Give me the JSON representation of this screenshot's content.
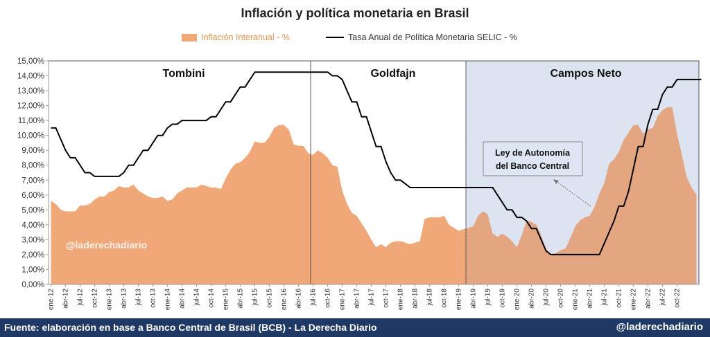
{
  "title": "Inflación y política monetaria en Brasil",
  "legend": {
    "inflation": "Inflación Interanual - %",
    "selic": "Tasa Anual de Política Monetaria SELIC - %"
  },
  "periods": [
    {
      "name": "Tombini",
      "start": 0,
      "end": 54
    },
    {
      "name": "Goldfajn",
      "start": 54,
      "end": 86
    },
    {
      "name": "Campos Neto",
      "start": 86,
      "end": 131
    }
  ],
  "annotation": {
    "text_line1": "Ley de Autonomía",
    "text_line2": "del Banco Central",
    "points_to": "feb-21"
  },
  "watermark": "@laderechadiario",
  "footer": {
    "source": "Fuente: elaboración en base a Banco Central de Brasil (BCB) - La Derecha Diario",
    "handle": "@laderechadiario"
  },
  "colors": {
    "inflation_area": "#F0A878",
    "selic_line": "#000000",
    "highlight": "#E9EEF8",
    "footer_bg": "#1F3864"
  },
  "chart_data": {
    "type": "area",
    "x_start": "ene-12",
    "x_tick_labels": [
      "ene-12",
      "abr-12",
      "jul-12",
      "oct-12",
      "ene-13",
      "abr-13",
      "jul-13",
      "oct-13",
      "ene-14",
      "abr-14",
      "jul-14",
      "oct-14",
      "ene-15",
      "abr-15",
      "jul-15",
      "oct-15",
      "ene-16",
      "abr-16",
      "jul-16",
      "oct-16",
      "ene-17",
      "abr-17",
      "jul-17",
      "oct-17",
      "ene-18",
      "abr-18",
      "jul-18",
      "oct-18",
      "ene-19",
      "abr-19",
      "jul-19",
      "oct-19",
      "ene-20",
      "abr-20",
      "jul-20",
      "oct-20",
      "ene-21",
      "abr-21",
      "jul-21",
      "oct-21",
      "ene-22",
      "abr-22",
      "jul-22",
      "oct-22"
    ],
    "y_tick_labels": [
      "0,00%",
      "1,00%",
      "2,00%",
      "3,00%",
      "4,00%",
      "5,00%",
      "6,00%",
      "7,00%",
      "8,00%",
      "9,00%",
      "10,00%",
      "11,00%",
      "12,00%",
      "13,00%",
      "14,00%",
      "15,00%"
    ],
    "ylim": [
      0,
      15
    ],
    "grid": false,
    "legend_position": "top",
    "series": [
      {
        "name": "Inflación Interanual - %",
        "type": "area",
        "values": [
          5.6,
          5.4,
          5.0,
          4.9,
          4.9,
          4.9,
          5.3,
          5.3,
          5.4,
          5.7,
          5.9,
          5.9,
          6.2,
          6.3,
          6.6,
          6.5,
          6.5,
          6.7,
          6.3,
          6.1,
          5.9,
          5.8,
          5.8,
          5.9,
          5.6,
          5.7,
          6.1,
          6.3,
          6.5,
          6.5,
          6.5,
          6.7,
          6.6,
          6.5,
          6.5,
          6.4,
          7.1,
          7.7,
          8.1,
          8.2,
          8.5,
          8.9,
          9.6,
          9.5,
          9.5,
          9.9,
          10.5,
          10.7,
          10.7,
          10.4,
          9.4,
          9.3,
          9.3,
          8.8,
          8.7,
          9.0,
          8.8,
          8.5,
          8.0,
          7.9,
          6.3,
          5.4,
          4.8,
          4.6,
          4.1,
          3.6,
          3.0,
          2.5,
          2.7,
          2.5,
          2.8,
          2.9,
          2.9,
          2.8,
          2.7,
          2.8,
          2.9,
          4.4,
          4.5,
          4.5,
          4.5,
          4.6,
          4.0,
          3.8,
          3.6,
          3.7,
          3.8,
          3.9,
          4.6,
          4.9,
          4.7,
          3.4,
          3.2,
          3.4,
          3.2,
          2.9,
          2.5,
          3.3,
          4.3,
          4.2,
          4.0,
          3.3,
          2.4,
          1.9,
          2.1,
          2.3,
          2.4,
          3.1,
          3.9,
          4.3,
          4.5,
          4.6,
          5.2,
          6.1,
          6.8,
          8.1,
          8.4,
          8.9,
          9.7,
          10.2,
          10.7,
          10.7,
          10.1,
          10.4,
          10.5,
          11.3,
          11.7,
          11.9,
          11.9,
          10.1,
          8.7,
          7.2,
          6.5,
          6.0
        ]
      },
      {
        "name": "Tasa Anual de Política Monetaria SELIC - %",
        "type": "line",
        "values": [
          10.5,
          10.5,
          9.75,
          9.0,
          8.5,
          8.5,
          8.0,
          7.5,
          7.5,
          7.25,
          7.25,
          7.25,
          7.25,
          7.25,
          7.25,
          7.5,
          8.0,
          8.0,
          8.5,
          9.0,
          9.0,
          9.5,
          10.0,
          10.0,
          10.5,
          10.75,
          10.75,
          11.0,
          11.0,
          11.0,
          11.0,
          11.0,
          11.0,
          11.25,
          11.25,
          11.75,
          12.25,
          12.25,
          12.75,
          13.25,
          13.25,
          13.75,
          14.25,
          14.25,
          14.25,
          14.25,
          14.25,
          14.25,
          14.25,
          14.25,
          14.25,
          14.25,
          14.25,
          14.25,
          14.25,
          14.25,
          14.25,
          14.25,
          14.0,
          14.0,
          13.75,
          13.0,
          12.25,
          12.25,
          11.25,
          11.25,
          10.25,
          9.25,
          9.25,
          8.25,
          7.5,
          7.0,
          7.0,
          6.75,
          6.5,
          6.5,
          6.5,
          6.5,
          6.5,
          6.5,
          6.5,
          6.5,
          6.5,
          6.5,
          6.5,
          6.5,
          6.5,
          6.5,
          6.5,
          6.5,
          6.5,
          6.5,
          6.0,
          5.5,
          5.0,
          5.0,
          4.5,
          4.5,
          4.25,
          3.75,
          3.75,
          3.0,
          2.25,
          2.0,
          2.0,
          2.0,
          2.0,
          2.0,
          2.0,
          2.0,
          2.0,
          2.0,
          2.0,
          2.0,
          2.75,
          3.5,
          4.25,
          5.25,
          5.25,
          6.25,
          7.75,
          9.25,
          9.25,
          10.75,
          11.75,
          11.75,
          12.75,
          13.25,
          13.25,
          13.75,
          13.75,
          13.75,
          13.75,
          13.75,
          13.75
        ]
      }
    ],
    "annotations": [
      "Tombini",
      "Goldfajn",
      "Campos Neto",
      "Ley de Autonomía del Banco Central",
      "@laderechadiario"
    ]
  }
}
